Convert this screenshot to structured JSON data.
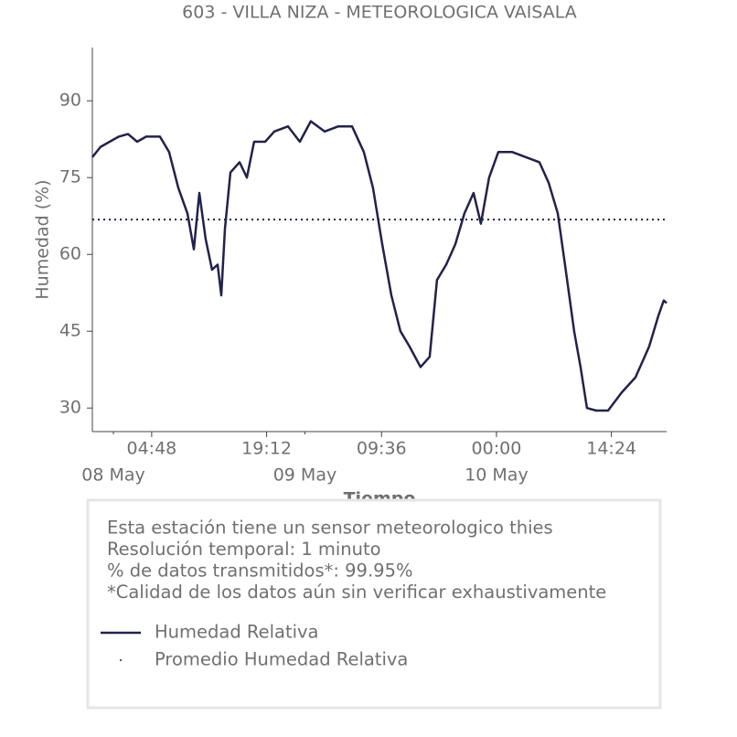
{
  "chart_data": {
    "type": "line",
    "title": "603 - VILLA NIZA - METEOROLOGICA VAISALA",
    "xlabel": "Tiempo",
    "ylabel": "Humedad (%)",
    "x": [
      "07 May 21:22",
      "07 May 22:24",
      "07 May 23:32",
      "08 May 00:41",
      "08 May 01:50",
      "08 May 02:59",
      "08 May 04:07",
      "08 May 05:50",
      "08 May 06:59",
      "08 May 08:08",
      "08 May 09:17",
      "08 May 10:05",
      "08 May 10:46",
      "08 May 11:34",
      "08 May 12:22",
      "08 May 13:04",
      "08 May 13:31",
      "08 May 13:59",
      "08 May 14:40",
      "08 May 15:49",
      "08 May 16:44",
      "08 May 17:38",
      "08 May 19:01",
      "08 May 20:10",
      "08 May 21:53",
      "08 May 23:22",
      "09 May 00:44",
      "09 May 02:28",
      "09 May 04:11",
      "09 May 05:54",
      "09 May 07:23",
      "09 May 08:32",
      "09 May 09:41",
      "09 May 10:50",
      "09 May 11:58",
      "09 May 13:07",
      "09 May 14:29",
      "09 May 15:38",
      "09 May 16:33",
      "09 May 17:42",
      "09 May 18:51",
      "09 May 19:59",
      "09 May 21:08",
      "09 May 22:03",
      "09 May 23:05",
      "10 May 00:14",
      "10 May 01:57",
      "10 May 03:40",
      "10 May 05:23",
      "10 May 06:32",
      "10 May 07:41",
      "10 May 08:35",
      "10 May 09:44",
      "10 May 10:32",
      "10 May 11:20",
      "10 May 12:29",
      "10 May 13:59",
      "10 May 15:41",
      "10 May 17:25",
      "10 May 19:08",
      "10 May 20:17",
      "10 May 20:58",
      "10 May 21:19"
    ],
    "series": [
      {
        "name": "Humedad Relativa",
        "color": "#22224a",
        "style": "solid",
        "values": [
          79,
          81,
          82,
          83,
          83.5,
          82,
          83,
          83,
          80,
          73,
          68,
          61,
          72,
          63,
          57,
          58,
          52,
          65,
          76,
          78,
          75,
          82,
          82,
          84,
          85,
          82,
          86,
          84,
          85,
          85,
          80,
          73,
          62,
          52,
          45,
          42,
          38,
          40,
          55,
          58,
          62,
          68,
          72,
          66,
          75,
          80,
          80,
          79,
          78,
          74,
          68,
          58,
          45,
          38,
          30,
          29.5,
          29.5,
          33,
          36,
          42,
          48,
          51,
          50.5
        ]
      },
      {
        "name": "Promedio Humedad Relativa",
        "color": "#22224a",
        "style": "dotted",
        "mean": 66.8
      }
    ],
    "xlim": [
      "07 May 21:22",
      "10 May 21:19"
    ],
    "xticks": [
      {
        "value": "08 May 04:48",
        "label": "04:48"
      },
      {
        "value": "08 May 19:12",
        "label": "19:12"
      },
      {
        "value": "09 May 09:36",
        "label": "09:36"
      },
      {
        "value": "10 May 00:00",
        "label": "00:00"
      },
      {
        "value": "10 May 14:24",
        "label": "14:24"
      }
    ],
    "xticks_minor": [
      {
        "value": "08 May 00:00",
        "label": "08 May"
      },
      {
        "value": "09 May 00:00",
        "label": "09 May"
      },
      {
        "value": "10 May 00:00",
        "label": "10 May"
      }
    ],
    "ylim": [
      25.4,
      100.4
    ],
    "yticks": [
      30,
      45,
      60,
      75,
      90
    ],
    "notes": [
      "Esta estación tiene un sensor meteorologico thies",
      "Resolución temporal: 1 minuto",
      "% de datos transmitidos*: 99.95%",
      "*Calidad de los datos aún sin verificar exhaustivamente"
    ]
  }
}
